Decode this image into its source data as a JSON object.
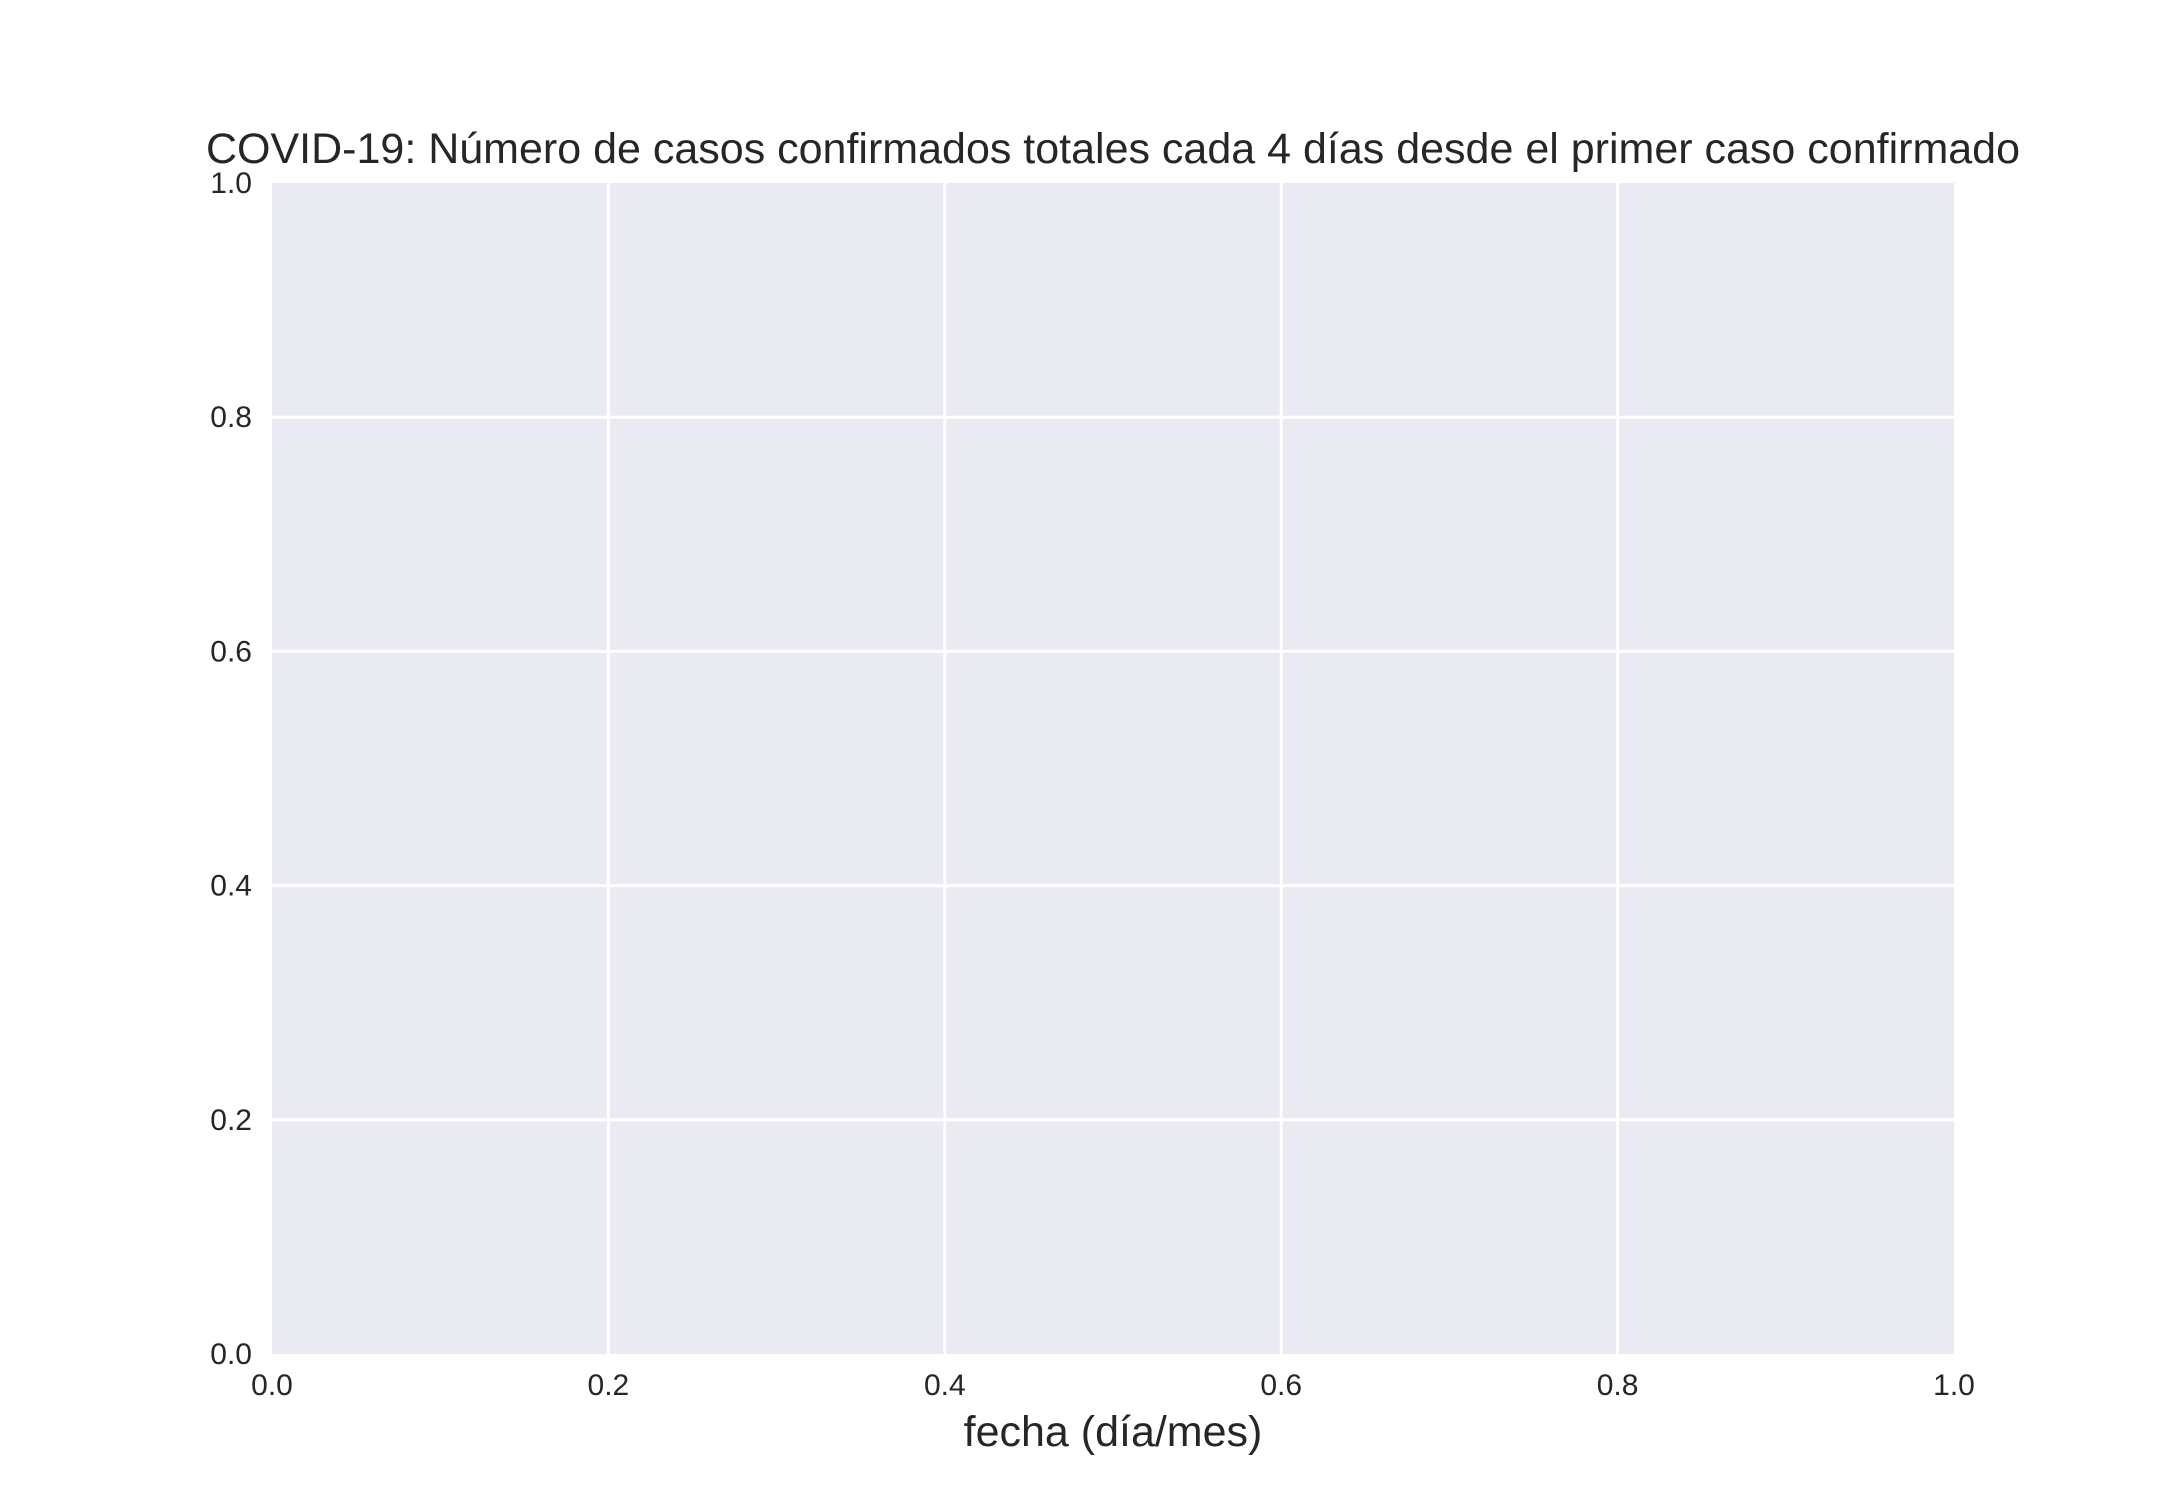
{
  "chart_data": {
    "type": "line",
    "title": "COVID-19: Número de casos confirmados totales cada 4 días desde el primer caso confirmado",
    "xlabel": "fecha (día/mes)",
    "ylabel": "",
    "xlim": [
      0.0,
      1.0
    ],
    "ylim": [
      0.0,
      1.0
    ],
    "x_ticks": [
      "0.0",
      "0.2",
      "0.4",
      "0.6",
      "0.8",
      "1.0"
    ],
    "y_ticks": [
      "0.0",
      "0.2",
      "0.4",
      "0.6",
      "0.8",
      "1.0"
    ],
    "series": [],
    "grid": true,
    "legend": "none",
    "colors": {
      "plot_background": "#EAEAF2",
      "grid": "#FFFFFF",
      "text": "#262626"
    }
  }
}
